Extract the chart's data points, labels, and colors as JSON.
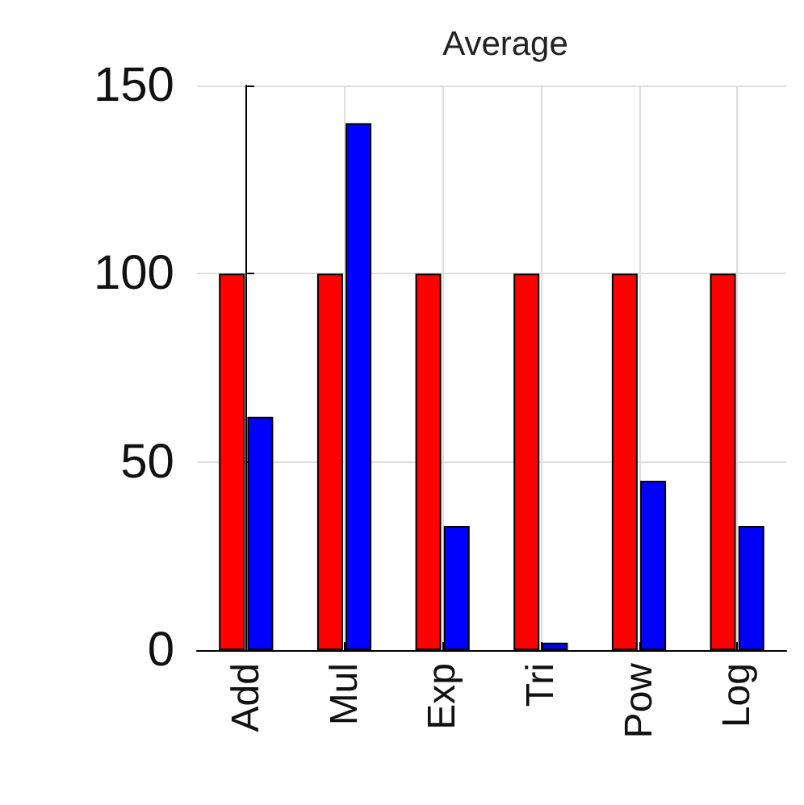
{
  "chart_data": {
    "type": "bar",
    "title": "Average",
    "categories": [
      "Add",
      "Mul",
      "Exp",
      "Tri",
      "Pow",
      "Log"
    ],
    "series": [
      {
        "color": "#ff0000",
        "values": [
          100,
          100,
          100,
          100,
          100,
          100
        ]
      },
      {
        "color": "#0000ff",
        "values": [
          62,
          140,
          33,
          2,
          45,
          33
        ]
      }
    ],
    "ylim": [
      0,
      150
    ],
    "yticks": [
      0,
      50,
      100,
      150
    ],
    "grid": true
  }
}
